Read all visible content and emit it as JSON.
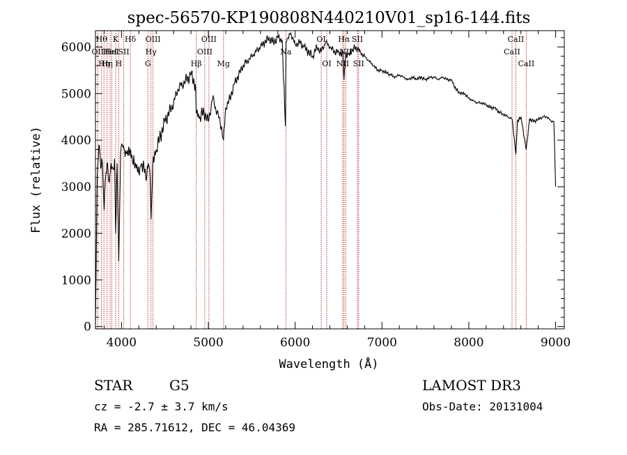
{
  "chart_data": {
    "type": "line",
    "title": "spec-56570-KP190808N440210V01_sp16-144.fits",
    "xlabel": "Wavelength (Å)",
    "ylabel": "Flux (relative)",
    "xlim": [
      3700,
      9100
    ],
    "ylim": [
      -50,
      6350
    ],
    "x_ticks": [
      4000,
      5000,
      6000,
      7000,
      8000,
      9000
    ],
    "y_ticks": [
      0,
      1000,
      2000,
      3000,
      4000,
      5000,
      6000
    ],
    "grid": false,
    "line_color": "#000000",
    "marker_color": "#b22222",
    "series": [
      {
        "x": [
          3700,
          3720,
          3740,
          3760,
          3780,
          3800,
          3820,
          3840,
          3860,
          3880,
          3900,
          3920,
          3933,
          3950,
          3968,
          3990,
          4010,
          4030,
          4060,
          4100,
          4130,
          4160,
          4200,
          4230,
          4260,
          4290,
          4310,
          4330,
          4340,
          4360,
          4400,
          4450,
          4500,
          4550,
          4600,
          4650,
          4700,
          4750,
          4800,
          4850,
          4861,
          4900,
          4950,
          5000,
          5050,
          5100,
          5150,
          5175,
          5200,
          5250,
          5300,
          5350,
          5400,
          5450,
          5500,
          5550,
          5600,
          5650,
          5700,
          5750,
          5800,
          5850,
          5889,
          5895,
          5920,
          5950,
          6000,
          6050,
          6100,
          6150,
          6200,
          6250,
          6300,
          6350,
          6400,
          6450,
          6500,
          6550,
          6563,
          6580,
          6650,
          6700,
          6750,
          6800,
          6850,
          6900,
          6950,
          7000,
          7050,
          7100,
          7150,
          7200,
          7250,
          7300,
          7350,
          7400,
          7450,
          7500,
          7550,
          7600,
          7650,
          7700,
          7750,
          7800,
          7850,
          7900,
          7950,
          8000,
          8050,
          8100,
          8150,
          8200,
          8250,
          8300,
          8350,
          8400,
          8450,
          8500,
          8542,
          8560,
          8600,
          8662,
          8700,
          8750,
          8800,
          8850,
          8900,
          8950,
          8980,
          9000
        ],
        "y": [
          50,
          3200,
          3900,
          3400,
          3500,
          2500,
          3300,
          3500,
          3100,
          3500,
          3400,
          3600,
          2000,
          3500,
          1400,
          3700,
          3900,
          3800,
          3700,
          3800,
          3500,
          3500,
          3300,
          3500,
          3400,
          3200,
          3500,
          3200,
          2300,
          3500,
          3800,
          4100,
          4400,
          4600,
          4800,
          5100,
          5200,
          5300,
          5400,
          5200,
          4600,
          4500,
          4600,
          4400,
          4900,
          4600,
          4300,
          4000,
          4700,
          4900,
          5200,
          5400,
          5600,
          5700,
          5800,
          5900,
          6000,
          6100,
          6200,
          6100,
          6200,
          6150,
          4300,
          6100,
          6200,
          6300,
          6050,
          6100,
          6000,
          5900,
          5800,
          6000,
          5900,
          6100,
          6000,
          5900,
          5900,
          5850,
          5300,
          5800,
          5900,
          6000,
          5900,
          5800,
          5700,
          5600,
          5500,
          5500,
          5450,
          5400,
          5350,
          5400,
          5350,
          5300,
          5350,
          5300,
          5350,
          5300,
          5350,
          5350,
          5300,
          5350,
          5300,
          5300,
          5100,
          5000,
          5000,
          4900,
          4850,
          4800,
          4800,
          4750,
          4700,
          4700,
          4600,
          4550,
          4500,
          4450,
          3700,
          4400,
          4500,
          3800,
          4450,
          4400,
          4450,
          4500,
          4500,
          4400,
          4400,
          3000
        ]
      }
    ],
    "lines": [
      {
        "wl": 3727,
        "name": "OII",
        "row": 1
      },
      {
        "wl": 3770,
        "name": "Hθ",
        "row": 0
      },
      {
        "wl": 3798,
        "name": "Hη",
        "row": 2
      },
      {
        "wl": 3835,
        "name": "Hη",
        "row": 2
      },
      {
        "wl": 3869,
        "name": "HeI",
        "row": 1
      },
      {
        "wl": 3889,
        "name": "HeI",
        "row": 1
      },
      {
        "wl": 3933,
        "name": "K",
        "row": 0
      },
      {
        "wl": 3968,
        "name": "H",
        "row": 2
      },
      {
        "wl": 4026,
        "name": "SII",
        "row": 1
      },
      {
        "wl": 4102,
        "name": "Hδ",
        "row": 0
      },
      {
        "wl": 4304,
        "name": "G",
        "row": 2
      },
      {
        "wl": 4340,
        "name": "Hγ",
        "row": 1
      },
      {
        "wl": 4363,
        "name": "OIII",
        "row": 0
      },
      {
        "wl": 4861,
        "name": "Hβ",
        "row": 2
      },
      {
        "wl": 4959,
        "name": "OIII",
        "row": 1
      },
      {
        "wl": 5007,
        "name": "OIII",
        "row": 0
      },
      {
        "wl": 5175,
        "name": "Mg",
        "row": 2
      },
      {
        "wl": 5893,
        "name": "Na",
        "row": 1
      },
      {
        "wl": 6300,
        "name": "OI",
        "row": 0
      },
      {
        "wl": 6364,
        "name": "OI",
        "row": 2
      },
      {
        "wl": 6548,
        "name": "NII",
        "row": 2
      },
      {
        "wl": 6563,
        "name": "Hα",
        "row": 0
      },
      {
        "wl": 6583,
        "name": "NII",
        "row": 1
      },
      {
        "wl": 6717,
        "name": "SII",
        "row": 0
      },
      {
        "wl": 6731,
        "name": "SII",
        "row": 2
      },
      {
        "wl": 8498,
        "name": "CaII",
        "row": 1
      },
      {
        "wl": 8542,
        "name": "CaII",
        "row": 0
      },
      {
        "wl": 8662,
        "name": "CaII",
        "row": 2
      }
    ]
  },
  "info": {
    "object_type": "STAR",
    "subclass": "G5",
    "survey": "LAMOST DR3",
    "redshift": "cz = -2.7 ± 3.7 km/s",
    "obs_date": "Obs-Date: 20131004",
    "coords": "RA = 285.71612, DEC =  46.04369"
  }
}
